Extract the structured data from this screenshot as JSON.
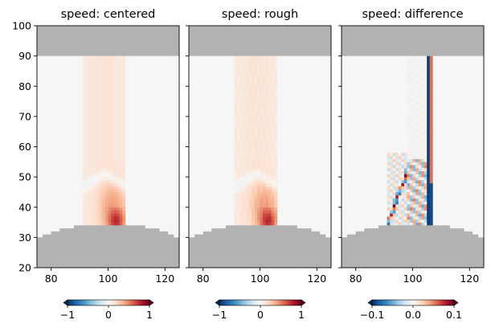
{
  "chart_data": [
    {
      "type": "heatmap",
      "title": "speed: centered",
      "xlim": [
        75,
        125
      ],
      "ylim": [
        20,
        100
      ],
      "xticks": [
        80,
        100,
        120
      ],
      "yticks": [
        20,
        30,
        40,
        50,
        60,
        70,
        80,
        90,
        100
      ],
      "show_ytick_labels": true,
      "colormap": "RdBu_r",
      "colorbar": {
        "range": [
          -1,
          1
        ],
        "ticks": [
          -1,
          0,
          1
        ],
        "tick_labels": [
          "−1",
          "0",
          "1"
        ],
        "extend": "both"
      },
      "mask": {
        "top_from_y": 90,
        "bottom_topography_y_by_x": [
          [
            75,
            30
          ],
          [
            77,
            31
          ],
          [
            80,
            32
          ],
          [
            83,
            33
          ],
          [
            88,
            34
          ],
          [
            110,
            34
          ],
          [
            113,
            33
          ],
          [
            118,
            32
          ],
          [
            121,
            31
          ],
          [
            123,
            30
          ]
        ],
        "color": "#b2b2b2"
      },
      "pattern": "centered"
    },
    {
      "type": "heatmap",
      "title": "speed: rough",
      "xlim": [
        75,
        125
      ],
      "ylim": [
        20,
        100
      ],
      "xticks": [
        80,
        100,
        120
      ],
      "yticks": [
        20,
        30,
        40,
        50,
        60,
        70,
        80,
        90,
        100
      ],
      "show_ytick_labels": false,
      "colormap": "RdBu_r",
      "colorbar": {
        "range": [
          -1,
          1
        ],
        "ticks": [
          -1,
          0,
          1
        ],
        "tick_labels": [
          "−1",
          "0",
          "1"
        ],
        "extend": "both"
      },
      "mask": {
        "top_from_y": 90,
        "bottom_topography_y_by_x": [
          [
            75,
            30
          ],
          [
            77,
            31
          ],
          [
            80,
            32
          ],
          [
            83,
            33
          ],
          [
            88,
            34
          ],
          [
            110,
            34
          ],
          [
            113,
            33
          ],
          [
            118,
            32
          ],
          [
            121,
            31
          ],
          [
            123,
            30
          ]
        ],
        "color": "#b2b2b2"
      },
      "pattern": "rough"
    },
    {
      "type": "heatmap",
      "title": "speed: difference",
      "xlim": [
        75,
        125
      ],
      "ylim": [
        20,
        100
      ],
      "xticks": [
        80,
        100,
        120
      ],
      "yticks": [
        20,
        30,
        40,
        50,
        60,
        70,
        80,
        90,
        100
      ],
      "show_ytick_labels": false,
      "colormap": "RdBu_r",
      "colorbar": {
        "range": [
          -0.1,
          0.1
        ],
        "ticks": [
          -0.1,
          0.0,
          0.1
        ],
        "tick_labels": [
          "−0.1",
          "0.0",
          "0.1"
        ],
        "extend": "both"
      },
      "mask": {
        "top_from_y": 90,
        "bottom_topography_y_by_x": [
          [
            75,
            30
          ],
          [
            77,
            31
          ],
          [
            80,
            32
          ],
          [
            83,
            33
          ],
          [
            88,
            34
          ],
          [
            110,
            34
          ],
          [
            113,
            33
          ],
          [
            118,
            32
          ],
          [
            121,
            31
          ],
          [
            123,
            30
          ]
        ],
        "color": "#b2b2b2"
      },
      "pattern": "difference"
    }
  ]
}
